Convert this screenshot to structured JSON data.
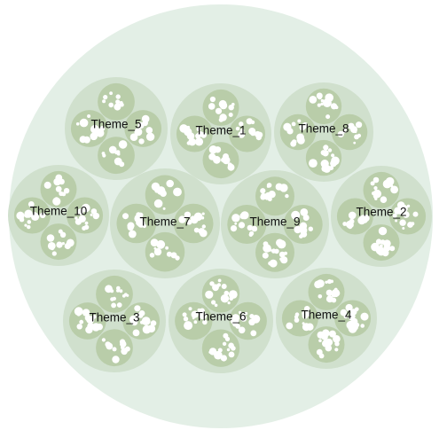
{
  "colors": {
    "outer": "#e3efe6",
    "group": "#d0e0cd",
    "cluster": "#b9cda9",
    "bubble": "#ffffff",
    "label": "#111111"
  },
  "themes": [
    {
      "id": "theme-5",
      "label": "Theme_5"
    },
    {
      "id": "theme-1",
      "label": "Theme_1"
    },
    {
      "id": "theme-8",
      "label": "Theme_8"
    },
    {
      "id": "theme-10",
      "label": "Theme_10"
    },
    {
      "id": "theme-7",
      "label": "Theme_7"
    },
    {
      "id": "theme-9",
      "label": "Theme_9"
    },
    {
      "id": "theme-2",
      "label": "Theme_2"
    },
    {
      "id": "theme-3",
      "label": "Theme_3"
    },
    {
      "id": "theme-6",
      "label": "Theme_6"
    },
    {
      "id": "theme-4",
      "label": "Theme_4"
    }
  ]
}
